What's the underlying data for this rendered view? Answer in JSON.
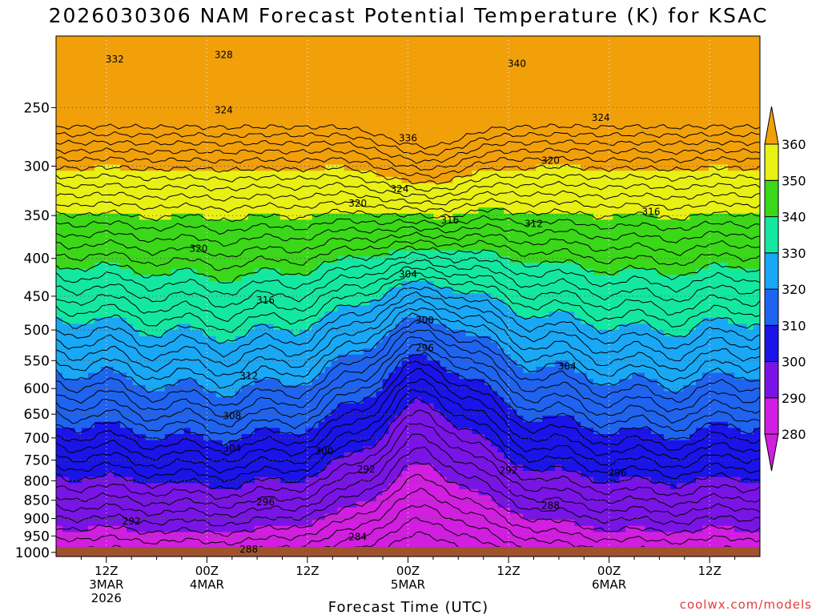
{
  "chart_data": {
    "type": "heatmap",
    "title": "2026030306 NAM Forecast Potential Temperature (K) for KSAC",
    "xlabel": "Forecast Time (UTC)",
    "ylabel": "",
    "y_ticks": [
      "250",
      "300",
      "350",
      "400",
      "450",
      "500",
      "550",
      "600",
      "650",
      "700",
      "750",
      "800",
      "850",
      "900",
      "950",
      "1000"
    ],
    "y_tick_values": [
      250,
      300,
      350,
      400,
      450,
      500,
      550,
      600,
      650,
      700,
      750,
      800,
      850,
      900,
      950,
      1000
    ],
    "ylim": [
      200,
      1013
    ],
    "x_ticks": [
      {
        "hour": 6,
        "lines": [
          "12Z",
          "3MAR",
          "2026"
        ]
      },
      {
        "hour": 18,
        "lines": [
          "00Z",
          "4MAR"
        ]
      },
      {
        "hour": 30,
        "lines": [
          "12Z"
        ]
      },
      {
        "hour": 42,
        "lines": [
          "00Z",
          "5MAR"
        ]
      },
      {
        "hour": 54,
        "lines": [
          "12Z"
        ]
      },
      {
        "hour": 66,
        "lines": [
          "00Z",
          "6MAR"
        ]
      },
      {
        "hour": 78,
        "lines": [
          "12Z"
        ]
      }
    ],
    "xlim": [
      0,
      84
    ],
    "colorbar": {
      "levels": [
        280,
        290,
        300,
        310,
        320,
        330,
        340,
        350,
        360
      ],
      "labels": [
        "280",
        "290",
        "300",
        "310",
        "320",
        "330",
        "340",
        "350",
        "360"
      ],
      "colors": [
        "#d21ee0",
        "#7a14e6",
        "#1a14e8",
        "#1f64f0",
        "#19a8f5",
        "#14e8a0",
        "#3ad818",
        "#e8f014",
        "#f2a00a"
      ],
      "extend": "both"
    },
    "contour_interval": 2,
    "contour_labels": [
      {
        "text": "332",
        "hour": 7,
        "p": 215
      },
      {
        "text": "328",
        "hour": 20,
        "p": 212
      },
      {
        "text": "340",
        "hour": 55,
        "p": 218
      },
      {
        "text": "324",
        "hour": 20,
        "p": 252
      },
      {
        "text": "324",
        "hour": 65,
        "p": 258
      },
      {
        "text": "336",
        "hour": 42,
        "p": 275
      },
      {
        "text": "320",
        "hour": 59,
        "p": 295
      },
      {
        "text": "324",
        "hour": 41,
        "p": 322
      },
      {
        "text": "320",
        "hour": 36,
        "p": 337
      },
      {
        "text": "316",
        "hour": 47,
        "p": 355
      },
      {
        "text": "312",
        "hour": 57,
        "p": 359
      },
      {
        "text": "316",
        "hour": 71,
        "p": 346
      },
      {
        "text": "320",
        "hour": 17,
        "p": 388
      },
      {
        "text": "304",
        "hour": 42,
        "p": 420
      },
      {
        "text": "316",
        "hour": 25,
        "p": 456
      },
      {
        "text": "300",
        "hour": 44,
        "p": 485
      },
      {
        "text": "296",
        "hour": 44,
        "p": 529
      },
      {
        "text": "304",
        "hour": 61,
        "p": 560
      },
      {
        "text": "312",
        "hour": 23,
        "p": 577
      },
      {
        "text": "308",
        "hour": 21,
        "p": 654
      },
      {
        "text": "304",
        "hour": 21,
        "p": 723
      },
      {
        "text": "300",
        "hour": 32,
        "p": 730
      },
      {
        "text": "292",
        "hour": 37,
        "p": 772
      },
      {
        "text": "292",
        "hour": 54,
        "p": 775
      },
      {
        "text": "296",
        "hour": 67,
        "p": 780
      },
      {
        "text": "296",
        "hour": 25,
        "p": 855
      },
      {
        "text": "288",
        "hour": 59,
        "p": 864
      },
      {
        "text": "292",
        "hour": 9,
        "p": 908
      },
      {
        "text": "284",
        "hour": 36,
        "p": 953
      },
      {
        "text": "288",
        "hour": 23,
        "p": 990
      }
    ]
  },
  "credit": "coolwx.com/models",
  "credit_color": "#e03c3c",
  "ground_color": "#a0522d"
}
